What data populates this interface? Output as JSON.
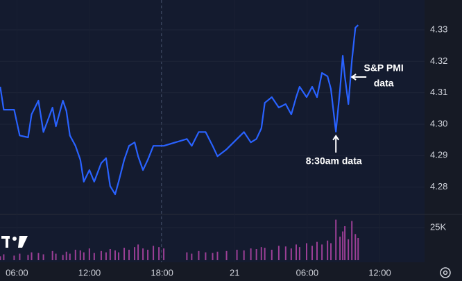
{
  "chart_data": {
    "type": "line",
    "x": [
      4.62,
      4.91,
      5.77,
      6.23,
      6.92,
      7.21,
      7.78,
      8.19,
      8.94,
      9.22,
      9.8,
      10.09,
      10.38,
      10.84,
      11.24,
      11.53,
      11.99,
      12.39,
      12.97,
      13.37,
      13.71,
      14.12,
      14.41,
      14.87,
      15.27,
      15.73,
      16.02,
      16.42,
      16.82,
      17.28,
      17.74,
      18.14,
      20.05,
      20.45,
      21.03,
      21.6,
      22.18,
      22.58,
      23.33,
      24.19,
      24.77,
      25.34,
      25.8,
      26.21,
      26.49,
      27.07,
      27.65,
      28.22,
      28.68,
      29.09,
      29.37,
      29.95,
      30.41,
      30.81,
      31.22,
      31.68,
      31.96,
      32.37,
      32.71,
      32.94,
      33.11,
      33.4,
      33.69,
      33.98,
      34.21
    ],
    "series": [
      {
        "color": "#2962ff",
        "values": [
          4.3119,
          4.3046,
          4.3046,
          4.2964,
          4.2958,
          4.3031,
          4.3075,
          4.2975,
          4.3053,
          4.2993,
          4.3075,
          4.3042,
          4.2964,
          4.2931,
          4.2887,
          4.2817,
          4.2854,
          4.2817,
          4.2876,
          4.2892,
          4.2803,
          4.2777,
          4.2817,
          4.2887,
          4.2931,
          4.2942,
          4.2898,
          4.2854,
          4.2887,
          4.2931,
          4.2931,
          4.2931,
          4.2953,
          4.2931,
          4.2975,
          4.2975,
          4.2931,
          4.2898,
          4.292,
          4.2953,
          4.2975,
          4.2942,
          4.2953,
          4.2987,
          4.3068,
          4.3086,
          4.3053,
          4.3064,
          4.3031,
          4.3086,
          4.3119,
          4.3086,
          4.3119,
          4.3086,
          4.3163,
          4.3152,
          4.3112,
          4.2976,
          4.3108,
          4.3218,
          4.3152,
          4.3064,
          4.3201,
          4.3307,
          4.3315
        ]
      },
      {
        "axis": "y2",
        "color": "#9c3f96",
        "values": [
          3000,
          4500,
          3500,
          5000,
          4000,
          6000,
          5500,
          4500,
          7000,
          5000,
          4000,
          6500,
          5000,
          8000,
          7500,
          6000,
          9000,
          5500,
          7000,
          6000,
          8500,
          7500,
          6000,
          9500,
          8000,
          10000,
          12000,
          9000,
          8000,
          11000,
          10000,
          9000,
          6000,
          5000,
          7000,
          6000,
          5500,
          6500,
          7000,
          8000,
          7500,
          9000,
          8500,
          10000,
          9500,
          8000,
          11000,
          10500,
          9000,
          12000,
          10000,
          13000,
          11000,
          14000,
          12000,
          15000,
          13000,
          31000,
          18000,
          22000,
          26000,
          16000,
          30000,
          20000,
          17000
        ]
      }
    ],
    "xlim": [
      4.6,
      39.7
    ],
    "xticks": [
      {
        "value": 6,
        "label": "06:00"
      },
      {
        "value": 12,
        "label": "12:00"
      },
      {
        "value": 18,
        "label": "18:00"
      },
      {
        "value": 24,
        "label": "21"
      },
      {
        "value": 30,
        "label": "06:00"
      },
      {
        "value": 36,
        "label": "12:00"
      }
    ],
    "ylim": [
      4.2713,
      4.3395
    ],
    "yticks": [
      {
        "value": 4.28,
        "label": "4.28"
      },
      {
        "value": 4.29,
        "label": "4.29"
      },
      {
        "value": 4.3,
        "label": "4.30"
      },
      {
        "value": 4.31,
        "label": "4.31"
      },
      {
        "value": 4.32,
        "label": "4.32"
      },
      {
        "value": 4.33,
        "label": "4.33"
      }
    ],
    "y2lim": [
      0,
      34500
    ],
    "y2ticks": [
      {
        "value": 25000,
        "label": "25K"
      }
    ],
    "annotations": [
      {
        "lines": [
          "S&P PMI",
          "data"
        ],
        "x": 33.4,
        "y": 4.315
      },
      {
        "lines": [
          "8:30am data"
        ],
        "x": 32.37,
        "y": 4.2976
      }
    ]
  }
}
